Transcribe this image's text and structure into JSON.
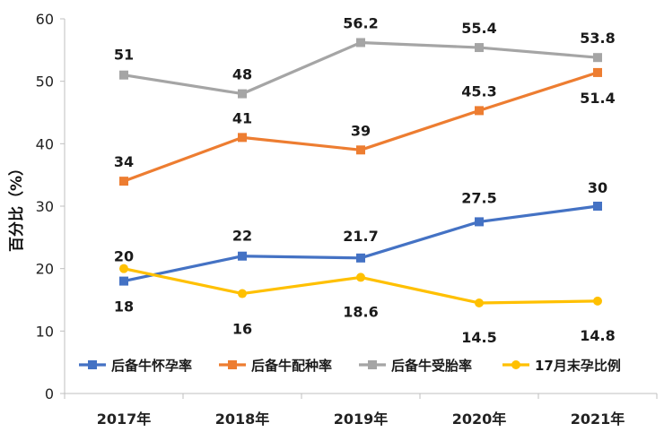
{
  "chart_data": {
    "type": "line",
    "categories": [
      "2017年",
      "2018年",
      "2019年",
      "2020年",
      "2021年"
    ],
    "ylabel": "百分比（%）",
    "ylim": [
      0,
      60
    ],
    "yticks": [
      0,
      10,
      20,
      30,
      40,
      50,
      60
    ],
    "legend_position": "bottom-inside",
    "series": [
      {
        "name": "后备牛怀孕率",
        "color": "#4472C4",
        "values": [
          18,
          22,
          21.7,
          27.5,
          30
        ],
        "labels": [
          "18",
          "22",
          "21.7",
          "27.5",
          "30"
        ]
      },
      {
        "name": "后备牛配种率",
        "color": "#ED7D31",
        "values": [
          34,
          41,
          39,
          45.3,
          51.4
        ],
        "labels": [
          "34",
          "41",
          "39",
          "45.3",
          "51.4"
        ]
      },
      {
        "name": "后备牛受胎率",
        "color": "#A5A5A5",
        "values": [
          51,
          48,
          56.2,
          55.4,
          53.8
        ],
        "labels": [
          "51",
          "48",
          "56.2",
          "55.4",
          "53.8"
        ]
      },
      {
        "name": "17月末孕比例",
        "color": "#FFC000",
        "values": [
          20,
          16,
          18.6,
          14.5,
          14.8
        ],
        "labels": [
          "20",
          "16",
          "18.6",
          "14.5",
          "14.8"
        ]
      }
    ]
  }
}
